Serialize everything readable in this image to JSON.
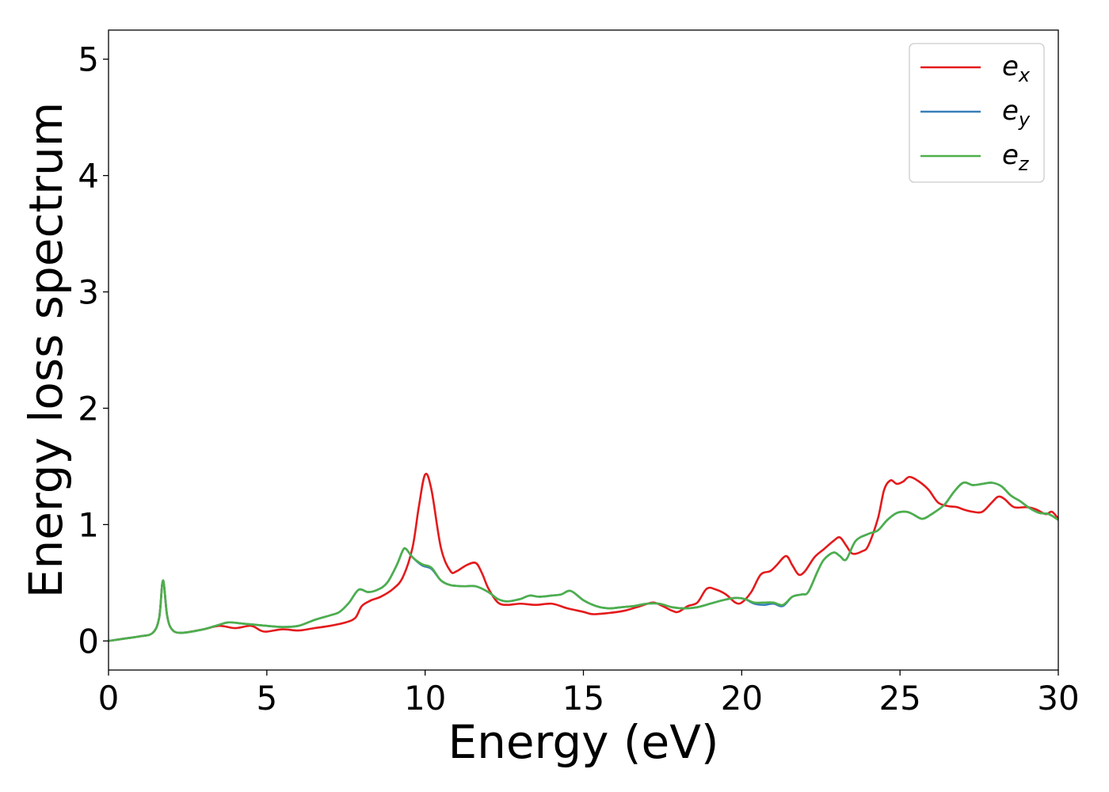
{
  "chart_data": {
    "type": "line",
    "xlabel": "Energy (eV)",
    "ylabel": "Energy loss spectrum",
    "xlim": [
      0,
      30
    ],
    "ylim": [
      -0.25,
      5.25
    ],
    "xticks": [
      0,
      5,
      10,
      15,
      20,
      25,
      30
    ],
    "yticks": [
      0,
      1,
      2,
      3,
      4,
      5
    ],
    "grid": false,
    "legend_position": "top-right",
    "series": [
      {
        "name": "e_x",
        "legend_base": "e",
        "legend_sub": "x",
        "color": "#e41a1c",
        "points": [
          [
            0,
            0
          ],
          [
            0.5,
            0.02
          ],
          [
            1.0,
            0.04
          ],
          [
            1.4,
            0.07
          ],
          [
            1.6,
            0.2
          ],
          [
            1.72,
            0.52
          ],
          [
            1.85,
            0.22
          ],
          [
            2.0,
            0.1
          ],
          [
            2.3,
            0.07
          ],
          [
            3.0,
            0.1
          ],
          [
            3.5,
            0.13
          ],
          [
            4.0,
            0.11
          ],
          [
            4.5,
            0.13
          ],
          [
            4.8,
            0.09
          ],
          [
            5.0,
            0.08
          ],
          [
            5.5,
            0.1
          ],
          [
            6.0,
            0.09
          ],
          [
            6.5,
            0.11
          ],
          [
            7.0,
            0.13
          ],
          [
            7.5,
            0.16
          ],
          [
            7.8,
            0.2
          ],
          [
            8.0,
            0.3
          ],
          [
            8.3,
            0.35
          ],
          [
            8.6,
            0.38
          ],
          [
            9.0,
            0.45
          ],
          [
            9.3,
            0.55
          ],
          [
            9.6,
            0.8
          ],
          [
            9.8,
            1.15
          ],
          [
            10.0,
            1.43
          ],
          [
            10.2,
            1.3
          ],
          [
            10.5,
            0.8
          ],
          [
            10.8,
            0.6
          ],
          [
            11.0,
            0.6
          ],
          [
            11.3,
            0.65
          ],
          [
            11.6,
            0.67
          ],
          [
            11.8,
            0.58
          ],
          [
            12.0,
            0.45
          ],
          [
            12.3,
            0.33
          ],
          [
            12.6,
            0.31
          ],
          [
            13.0,
            0.32
          ],
          [
            13.5,
            0.31
          ],
          [
            14.0,
            0.32
          ],
          [
            14.5,
            0.28
          ],
          [
            15.0,
            0.25
          ],
          [
            15.3,
            0.23
          ],
          [
            15.8,
            0.24
          ],
          [
            16.3,
            0.26
          ],
          [
            16.8,
            0.3
          ],
          [
            17.2,
            0.33
          ],
          [
            17.5,
            0.3
          ],
          [
            17.8,
            0.26
          ],
          [
            18.0,
            0.25
          ],
          [
            18.3,
            0.3
          ],
          [
            18.6,
            0.33
          ],
          [
            18.9,
            0.45
          ],
          [
            19.2,
            0.44
          ],
          [
            19.5,
            0.4
          ],
          [
            19.8,
            0.33
          ],
          [
            20.0,
            0.33
          ],
          [
            20.3,
            0.42
          ],
          [
            20.6,
            0.57
          ],
          [
            20.9,
            0.6
          ],
          [
            21.1,
            0.65
          ],
          [
            21.4,
            0.73
          ],
          [
            21.6,
            0.65
          ],
          [
            21.8,
            0.57
          ],
          [
            22.0,
            0.6
          ],
          [
            22.3,
            0.72
          ],
          [
            22.6,
            0.79
          ],
          [
            22.9,
            0.86
          ],
          [
            23.1,
            0.89
          ],
          [
            23.3,
            0.82
          ],
          [
            23.5,
            0.75
          ],
          [
            23.8,
            0.77
          ],
          [
            24.0,
            0.82
          ],
          [
            24.3,
            1.05
          ],
          [
            24.5,
            1.3
          ],
          [
            24.7,
            1.38
          ],
          [
            24.9,
            1.35
          ],
          [
            25.1,
            1.37
          ],
          [
            25.3,
            1.41
          ],
          [
            25.6,
            1.37
          ],
          [
            25.9,
            1.3
          ],
          [
            26.2,
            1.19
          ],
          [
            26.5,
            1.16
          ],
          [
            26.8,
            1.15
          ],
          [
            27.0,
            1.13
          ],
          [
            27.3,
            1.11
          ],
          [
            27.6,
            1.11
          ],
          [
            27.9,
            1.19
          ],
          [
            28.1,
            1.24
          ],
          [
            28.3,
            1.22
          ],
          [
            28.6,
            1.15
          ],
          [
            29.0,
            1.15
          ],
          [
            29.3,
            1.13
          ],
          [
            29.6,
            1.09
          ],
          [
            29.8,
            1.11
          ],
          [
            30.0,
            1.05
          ]
        ]
      },
      {
        "name": "e_y",
        "legend_base": "e",
        "legend_sub": "y",
        "color": "#377eb8",
        "points": [
          [
            0,
            0
          ],
          [
            0.5,
            0.02
          ],
          [
            1.0,
            0.04
          ],
          [
            1.4,
            0.07
          ],
          [
            1.6,
            0.2
          ],
          [
            1.72,
            0.52
          ],
          [
            1.85,
            0.22
          ],
          [
            2.0,
            0.1
          ],
          [
            2.3,
            0.07
          ],
          [
            3.0,
            0.1
          ],
          [
            3.5,
            0.14
          ],
          [
            3.8,
            0.16
          ],
          [
            4.2,
            0.15
          ],
          [
            4.6,
            0.14
          ],
          [
            5.0,
            0.13
          ],
          [
            5.5,
            0.12
          ],
          [
            6.0,
            0.13
          ],
          [
            6.5,
            0.18
          ],
          [
            7.0,
            0.22
          ],
          [
            7.3,
            0.25
          ],
          [
            7.6,
            0.33
          ],
          [
            7.9,
            0.44
          ],
          [
            8.2,
            0.42
          ],
          [
            8.5,
            0.44
          ],
          [
            8.8,
            0.5
          ],
          [
            9.1,
            0.65
          ],
          [
            9.3,
            0.78
          ],
          [
            9.4,
            0.79
          ],
          [
            9.6,
            0.72
          ],
          [
            9.9,
            0.65
          ],
          [
            10.2,
            0.62
          ],
          [
            10.5,
            0.52
          ],
          [
            10.8,
            0.48
          ],
          [
            11.2,
            0.47
          ],
          [
            11.6,
            0.47
          ],
          [
            12.0,
            0.42
          ],
          [
            12.3,
            0.36
          ],
          [
            12.6,
            0.34
          ],
          [
            13.0,
            0.36
          ],
          [
            13.3,
            0.39
          ],
          [
            13.6,
            0.38
          ],
          [
            14.0,
            0.39
          ],
          [
            14.3,
            0.4
          ],
          [
            14.6,
            0.43
          ],
          [
            15.0,
            0.35
          ],
          [
            15.4,
            0.3
          ],
          [
            15.8,
            0.28
          ],
          [
            16.2,
            0.29
          ],
          [
            16.6,
            0.3
          ],
          [
            17.0,
            0.32
          ],
          [
            17.4,
            0.32
          ],
          [
            17.8,
            0.29
          ],
          [
            18.2,
            0.28
          ],
          [
            18.6,
            0.29
          ],
          [
            19.0,
            0.32
          ],
          [
            19.4,
            0.35
          ],
          [
            19.8,
            0.37
          ],
          [
            20.1,
            0.36
          ],
          [
            20.4,
            0.32
          ],
          [
            20.7,
            0.31
          ],
          [
            21.0,
            0.32
          ],
          [
            21.3,
            0.3
          ],
          [
            21.6,
            0.38
          ],
          [
            21.9,
            0.4
          ],
          [
            22.1,
            0.42
          ],
          [
            22.4,
            0.6
          ],
          [
            22.6,
            0.7
          ],
          [
            22.9,
            0.76
          ],
          [
            23.1,
            0.73
          ],
          [
            23.3,
            0.7
          ],
          [
            23.6,
            0.86
          ],
          [
            24.0,
            0.92
          ],
          [
            24.3,
            0.95
          ],
          [
            24.6,
            1.04
          ],
          [
            24.9,
            1.1
          ],
          [
            25.2,
            1.11
          ],
          [
            25.4,
            1.09
          ],
          [
            25.7,
            1.05
          ],
          [
            26.0,
            1.09
          ],
          [
            26.4,
            1.17
          ],
          [
            26.7,
            1.28
          ],
          [
            27.0,
            1.36
          ],
          [
            27.3,
            1.34
          ],
          [
            27.6,
            1.35
          ],
          [
            27.9,
            1.36
          ],
          [
            28.2,
            1.33
          ],
          [
            28.5,
            1.25
          ],
          [
            28.8,
            1.2
          ],
          [
            29.1,
            1.14
          ],
          [
            29.4,
            1.1
          ],
          [
            29.7,
            1.09
          ],
          [
            30.0,
            1.04
          ]
        ]
      },
      {
        "name": "e_z",
        "legend_base": "e",
        "legend_sub": "z",
        "color": "#4daf4a",
        "points": [
          [
            0,
            0
          ],
          [
            0.5,
            0.02
          ],
          [
            1.0,
            0.04
          ],
          [
            1.4,
            0.07
          ],
          [
            1.6,
            0.2
          ],
          [
            1.72,
            0.52
          ],
          [
            1.85,
            0.22
          ],
          [
            2.0,
            0.1
          ],
          [
            2.3,
            0.07
          ],
          [
            3.0,
            0.1
          ],
          [
            3.5,
            0.14
          ],
          [
            3.8,
            0.16
          ],
          [
            4.2,
            0.15
          ],
          [
            4.6,
            0.14
          ],
          [
            5.0,
            0.13
          ],
          [
            5.5,
            0.12
          ],
          [
            6.0,
            0.13
          ],
          [
            6.5,
            0.18
          ],
          [
            7.0,
            0.22
          ],
          [
            7.3,
            0.25
          ],
          [
            7.6,
            0.33
          ],
          [
            7.9,
            0.44
          ],
          [
            8.2,
            0.42
          ],
          [
            8.5,
            0.44
          ],
          [
            8.8,
            0.5
          ],
          [
            9.1,
            0.65
          ],
          [
            9.3,
            0.78
          ],
          [
            9.4,
            0.79
          ],
          [
            9.6,
            0.72
          ],
          [
            9.9,
            0.66
          ],
          [
            10.2,
            0.63
          ],
          [
            10.5,
            0.52
          ],
          [
            10.8,
            0.48
          ],
          [
            11.2,
            0.47
          ],
          [
            11.6,
            0.47
          ],
          [
            12.0,
            0.42
          ],
          [
            12.3,
            0.36
          ],
          [
            12.6,
            0.34
          ],
          [
            13.0,
            0.36
          ],
          [
            13.3,
            0.39
          ],
          [
            13.6,
            0.38
          ],
          [
            14.0,
            0.39
          ],
          [
            14.3,
            0.4
          ],
          [
            14.6,
            0.43
          ],
          [
            15.0,
            0.35
          ],
          [
            15.4,
            0.3
          ],
          [
            15.8,
            0.28
          ],
          [
            16.2,
            0.29
          ],
          [
            16.6,
            0.3
          ],
          [
            17.0,
            0.32
          ],
          [
            17.4,
            0.32
          ],
          [
            17.8,
            0.29
          ],
          [
            18.2,
            0.28
          ],
          [
            18.6,
            0.29
          ],
          [
            19.0,
            0.32
          ],
          [
            19.4,
            0.35
          ],
          [
            19.8,
            0.37
          ],
          [
            20.1,
            0.36
          ],
          [
            20.4,
            0.33
          ],
          [
            20.7,
            0.33
          ],
          [
            21.0,
            0.33
          ],
          [
            21.3,
            0.31
          ],
          [
            21.6,
            0.38
          ],
          [
            21.9,
            0.4
          ],
          [
            22.1,
            0.42
          ],
          [
            22.4,
            0.6
          ],
          [
            22.6,
            0.7
          ],
          [
            22.9,
            0.76
          ],
          [
            23.1,
            0.73
          ],
          [
            23.3,
            0.7
          ],
          [
            23.6,
            0.86
          ],
          [
            24.0,
            0.92
          ],
          [
            24.3,
            0.95
          ],
          [
            24.6,
            1.04
          ],
          [
            24.9,
            1.1
          ],
          [
            25.2,
            1.11
          ],
          [
            25.4,
            1.09
          ],
          [
            25.7,
            1.05
          ],
          [
            26.0,
            1.09
          ],
          [
            26.4,
            1.17
          ],
          [
            26.7,
            1.28
          ],
          [
            27.0,
            1.36
          ],
          [
            27.3,
            1.34
          ],
          [
            27.6,
            1.35
          ],
          [
            27.9,
            1.36
          ],
          [
            28.2,
            1.33
          ],
          [
            28.5,
            1.25
          ],
          [
            28.8,
            1.2
          ],
          [
            29.1,
            1.14
          ],
          [
            29.4,
            1.1
          ],
          [
            29.7,
            1.09
          ],
          [
            30.0,
            1.04
          ]
        ]
      }
    ]
  }
}
